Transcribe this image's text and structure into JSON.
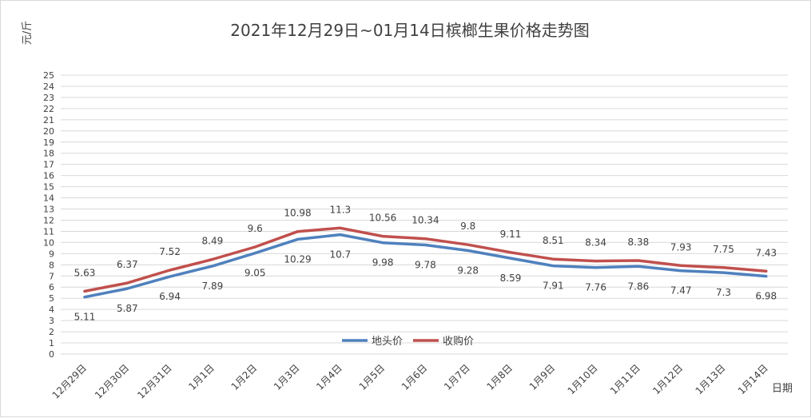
{
  "chart_data": {
    "type": "line",
    "title": "2021年12月29日~01月14日槟榔生果价格走势图",
    "ylabel": "元/斤",
    "xlabel": "日期",
    "ylim": [
      0,
      25
    ],
    "ytick_step": 1,
    "grid": true,
    "legend_position": "bottom-center",
    "categories": [
      "12月29日",
      "12月30日",
      "12月31日",
      "1月1日",
      "1月2日",
      "1月3日",
      "1月4日",
      "1月5日",
      "1月6日",
      "1月7日",
      "1月8日",
      "1月9日",
      "1月10日",
      "1月11日",
      "1月12日",
      "1月13日",
      "1月14日"
    ],
    "series": [
      {
        "name": "地头价",
        "color": "#4f81bd",
        "label_position": "below",
        "values": [
          5.11,
          5.87,
          6.94,
          7.89,
          9.05,
          10.29,
          10.7,
          9.98,
          9.78,
          9.28,
          8.59,
          7.91,
          7.76,
          7.86,
          7.47,
          7.3,
          6.98
        ]
      },
      {
        "name": "收购价",
        "color": "#c0504d",
        "label_position": "above",
        "values": [
          5.63,
          6.37,
          7.52,
          8.49,
          9.6,
          10.98,
          11.3,
          10.56,
          10.34,
          9.8,
          9.11,
          8.51,
          8.34,
          8.38,
          7.93,
          7.75,
          7.43
        ]
      }
    ]
  }
}
